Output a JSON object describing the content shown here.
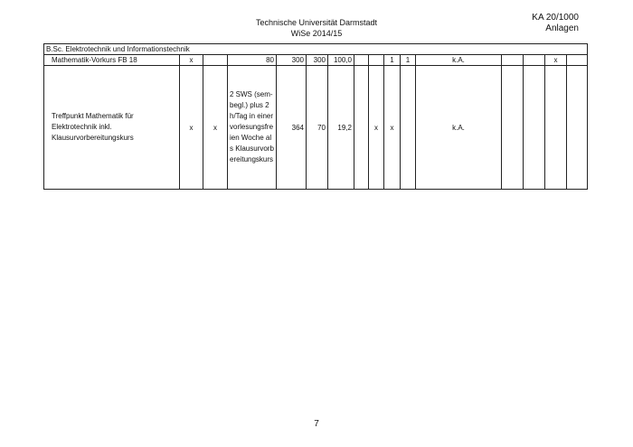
{
  "header": {
    "university": "Technische Universität Darmstadt",
    "semester": "WiSe 2014/15",
    "ref": "KA 20/1000",
    "appendix": "Anlagen"
  },
  "section": "B.Sc. Elektrotechnik und Informationstechnik",
  "rows": [
    [
      "Mathematik-Vorkurs FB 18",
      "x",
      "",
      "80",
      "300",
      "300",
      "100,0",
      "",
      "",
      "1",
      "1",
      "k.A.",
      "",
      "",
      "x",
      ""
    ],
    [
      "Treffpunkt Mathematik für Elektrotechnik inkl. Klausurvorbereitungskurs",
      "x",
      "x",
      "2 SWS (sem-begl.) plus 2h/Tag in einer vorlesungsfreien Woche als Klausurvorbereitungskurs",
      "364",
      "70",
      "19,2",
      "",
      "x",
      "x",
      "",
      "k.A.",
      "",
      "",
      "",
      ""
    ]
  ],
  "page_number": "7"
}
